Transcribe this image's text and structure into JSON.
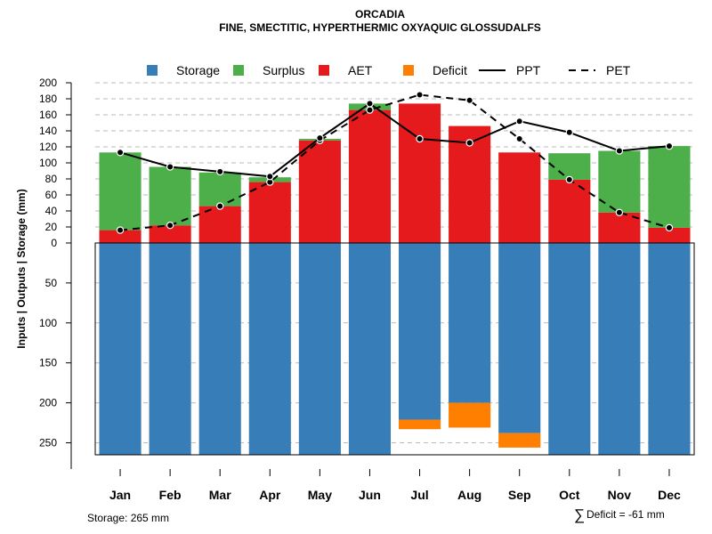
{
  "chart_data": {
    "type": "bar",
    "title": "ORCADIA",
    "subtitle": "FINE, SMECTITIC, HYPERTHERMIC OXYAQUIC GLOSSUDALFS",
    "ylabel": "Inputs | Outputs | Storage     (mm)",
    "categories": [
      "Jan",
      "Feb",
      "Mar",
      "Apr",
      "May",
      "Jun",
      "Jul",
      "Aug",
      "Sep",
      "Oct",
      "Nov",
      "Dec"
    ],
    "upper_ylim": [
      0,
      200
    ],
    "upper_ticks": [
      0,
      20,
      40,
      60,
      80,
      100,
      120,
      140,
      160,
      180,
      200
    ],
    "lower_ylim": [
      0,
      265
    ],
    "lower_ticks": [
      50,
      100,
      150,
      200,
      250
    ],
    "legend": [
      {
        "name": "Storage",
        "color": "#377EB8",
        "kind": "box"
      },
      {
        "name": "Surplus",
        "color": "#4DAF4A",
        "kind": "box"
      },
      {
        "name": "AET",
        "color": "#E41A1C",
        "kind": "box"
      },
      {
        "name": "Deficit",
        "color": "#FF7F00",
        "kind": "box"
      },
      {
        "name": "PPT",
        "color": "#000000",
        "kind": "solid"
      },
      {
        "name": "PET",
        "color": "#000000",
        "kind": "dashed"
      }
    ],
    "series": [
      {
        "name": "AET",
        "values": [
          16,
          22,
          46,
          76,
          128,
          166,
          174,
          146,
          113,
          79,
          38,
          19
        ]
      },
      {
        "name": "Surplus",
        "values": [
          97,
          73,
          42,
          6,
          2,
          8,
          0,
          0,
          0,
          33,
          77,
          102
        ]
      },
      {
        "name": "PPT",
        "values": [
          113,
          95,
          89,
          83,
          131,
          174,
          130,
          125,
          152,
          138,
          115,
          121
        ]
      },
      {
        "name": "PET",
        "values": [
          16,
          22,
          46,
          76,
          128,
          166,
          185,
          178,
          130,
          79,
          38,
          19
        ]
      },
      {
        "name": "Storage",
        "values": [
          265,
          265,
          265,
          265,
          265,
          265,
          221,
          200,
          238,
          265,
          265,
          265
        ]
      },
      {
        "name": "Deficit",
        "values": [
          0,
          0,
          0,
          0,
          0,
          0,
          -12,
          -31,
          -18,
          0,
          0,
          0
        ]
      }
    ]
  },
  "footer": {
    "storage_note": "Storage: 265 mm",
    "deficit_symbol": "∑",
    "deficit_note": "Deficit = -61 mm"
  }
}
